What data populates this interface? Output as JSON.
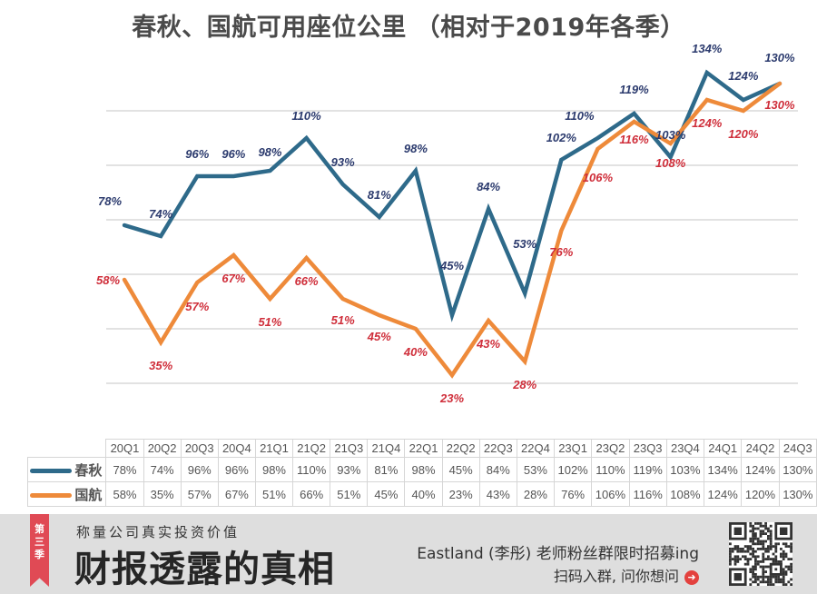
{
  "title": "春秋、国航可用座位公里 （相对于2019年各季）",
  "chart_data": {
    "type": "line",
    "title": "春秋、国航可用座位公里 （相对于2019年各季）",
    "xlabel": "",
    "ylabel": "",
    "categories": [
      "20Q1",
      "20Q2",
      "20Q3",
      "20Q4",
      "21Q1",
      "21Q2",
      "21Q3",
      "21Q4",
      "22Q1",
      "22Q2",
      "22Q3",
      "22Q4",
      "23Q1",
      "23Q2",
      "23Q3",
      "23Q4",
      "24Q1",
      "24Q2",
      "24Q3"
    ],
    "series": [
      {
        "name": "春秋",
        "color": "#2e6a8a",
        "label_color": "#2c3b6e",
        "values": [
          78,
          74,
          96,
          96,
          98,
          110,
          93,
          81,
          98,
          45,
          84,
          53,
          102,
          110,
          119,
          103,
          134,
          124,
          130
        ],
        "labels": [
          "78%",
          "74%",
          "96%",
          "96%",
          "98%",
          "110%",
          "93%",
          "81%",
          "98%",
          "45%",
          "84%",
          "53%",
          "102%",
          "110%",
          "119%",
          "103%",
          "134%",
          "124%",
          "130%"
        ]
      },
      {
        "name": "国航",
        "color": "#ee8a3a",
        "label_color": "#cf2e3a",
        "values": [
          58,
          35,
          57,
          67,
          51,
          66,
          51,
          45,
          40,
          23,
          43,
          28,
          76,
          106,
          116,
          108,
          124,
          120,
          130
        ],
        "labels": [
          "58%",
          "35%",
          "57%",
          "67%",
          "51%",
          "66%",
          "51%",
          "45%",
          "40%",
          "23%",
          "43%",
          "28%",
          "76%",
          "106%",
          "116%",
          "108%",
          "124%",
          "120%",
          "130%"
        ]
      }
    ],
    "ylim": [
      20,
      135
    ],
    "gridlines": [
      20,
      40,
      60,
      80,
      100,
      120
    ],
    "grid": true,
    "legend": "bottom-table",
    "unit": "%"
  },
  "banner": {
    "ribbon": "第三季",
    "subtitle": "称量公司真实投资价值",
    "main": "财报透露的真相",
    "promo_line1": "Eastland (李彤) 老师粉丝群限时招募ing",
    "promo_line2": "扫码入群, 问你想问"
  }
}
